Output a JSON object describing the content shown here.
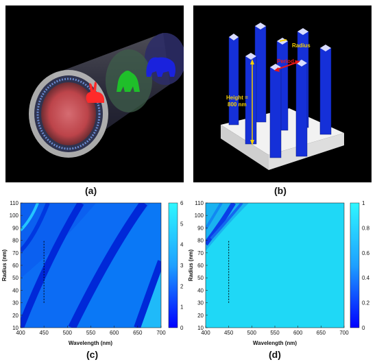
{
  "figure": {
    "panel_labels": [
      "(a)",
      "(b)",
      "(c)",
      "(d)"
    ]
  },
  "panel_a": {
    "animal_icons": [
      "rabbit-icon",
      "gorilla-icon",
      "bear-icon"
    ],
    "colors": {
      "rabbit": "#ff2a2a",
      "gorilla": "#1fbf2a",
      "bear": "#1a22dd",
      "background": "#000000"
    }
  },
  "panel_b": {
    "labels": {
      "radius": "Radius",
      "period": "Period",
      "height": "Height =",
      "height_value": "800 nm"
    },
    "colors": {
      "pillar": "#1530d8",
      "base": "#f2f2f2",
      "arrow_yellow": "#f5d000",
      "arrow_red": "#e81a1a",
      "background": "#000000"
    }
  },
  "chart_data": [
    {
      "id": "c",
      "type": "heatmap",
      "xlabel": "Wavelength (nm)",
      "ylabel": "Radius (nm)",
      "xlim": [
        400,
        700
      ],
      "ylim": [
        10,
        110
      ],
      "xticks": [
        400,
        450,
        500,
        550,
        600,
        650,
        700
      ],
      "yticks": [
        10,
        20,
        30,
        40,
        50,
        60,
        70,
        80,
        90,
        100,
        110
      ],
      "colorbar": {
        "min": 0,
        "max": 6,
        "ticks": [
          0,
          1,
          2,
          3,
          4,
          5,
          6
        ]
      },
      "dashed_line": {
        "x": 450,
        "y": [
          30,
          80
        ]
      }
    },
    {
      "id": "d",
      "type": "heatmap",
      "xlabel": "Wavelength (nm)",
      "ylabel": "Radius (nm)",
      "xlim": [
        400,
        700
      ],
      "ylim": [
        10,
        110
      ],
      "xticks": [
        400,
        450,
        500,
        550,
        600,
        650,
        700
      ],
      "yticks": [
        10,
        20,
        30,
        40,
        50,
        60,
        70,
        80,
        90,
        100,
        110
      ],
      "colorbar": {
        "min": 0,
        "max": 1,
        "ticks": [
          0,
          0.2,
          0.4,
          0.6,
          0.8,
          1
        ]
      },
      "dashed_line": {
        "x": 450,
        "y": [
          30,
          80
        ]
      }
    }
  ]
}
